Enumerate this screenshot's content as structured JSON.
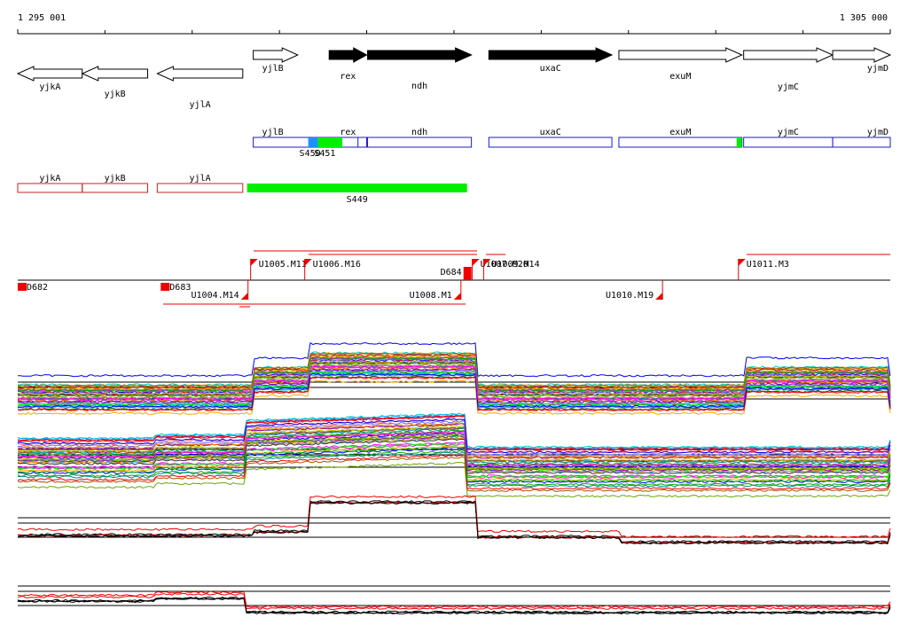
{
  "ruler": {
    "start_label": "1 295 001",
    "end_label": "1 305 000",
    "start_bp": 1295001,
    "end_bp": 1305000,
    "tick_interval_bp": 1000
  },
  "colors": {
    "gene_outline": "#000000",
    "operon_outline": "#1a1acc",
    "reverse_outline": "#cc2222",
    "promoter": "#ee0000",
    "block_green": "#00ee00",
    "block_blue": "#1e90ff",
    "profile_red": "#ee0000",
    "profile_black": "#000000"
  },
  "genes": [
    {
      "name": "yjkA",
      "strand": "-",
      "start": 1295001,
      "end": 1295740,
      "filled": false,
      "row": 1
    },
    {
      "name": "yjkB",
      "strand": "-",
      "start": 1295740,
      "end": 1296490,
      "filled": false,
      "row": 2
    },
    {
      "name": "yjlA",
      "strand": "-",
      "start": 1296600,
      "end": 1297580,
      "filled": false,
      "row": 3
    },
    {
      "name": "yjlB",
      "strand": "+",
      "start": 1297700,
      "end": 1298210,
      "filled": false,
      "row": 0
    },
    {
      "name": "rex",
      "strand": "+",
      "start": 1298570,
      "end": 1299000,
      "filled": true,
      "row": 0
    },
    {
      "name": "ndh",
      "strand": "+",
      "start": 1299010,
      "end": 1300200,
      "filled": true,
      "row": 0
    },
    {
      "name": "uxaC",
      "strand": "+",
      "start": 1300400,
      "end": 1301810,
      "filled": true,
      "row": 0
    },
    {
      "name": "exuM",
      "strand": "+",
      "start": 1301890,
      "end": 1303300,
      "filled": false,
      "row": 0
    },
    {
      "name": "yjmC",
      "strand": "+",
      "start": 1303320,
      "end": 1304340,
      "filled": false,
      "row": 0
    },
    {
      "name": "yjmD",
      "strand": "+",
      "start": 1304340,
      "end": 1305000,
      "filled": false,
      "row": 0
    }
  ],
  "forward_segments": [
    {
      "name": "yjlB",
      "start": 1297700,
      "end": 1298900
    },
    {
      "name": "rex",
      "start": 1298570,
      "end": 1299000
    },
    {
      "name": "ndh",
      "start": 1299010,
      "end": 1300200
    },
    {
      "name": "uxaC",
      "start": 1300400,
      "end": 1301810
    },
    {
      "name": "exuM",
      "start": 1301890,
      "end": 1303300
    },
    {
      "name": "yjmC",
      "start": 1303320,
      "end": 1304340
    },
    {
      "name": "yjmD",
      "start": 1304340,
      "end": 1305000
    }
  ],
  "forward_blocks": [
    {
      "label": "S450",
      "start": 1298330,
      "end": 1298440,
      "color": "#1e90ff"
    },
    {
      "label": "S451",
      "start": 1298440,
      "end": 1298720,
      "color": "#00ee00"
    },
    {
      "label": "",
      "start": 1303240,
      "end": 1303300,
      "color": "#00ee00"
    }
  ],
  "reverse_segments": [
    {
      "name": "yjkA",
      "start": 1295001,
      "end": 1295740
    },
    {
      "name": "yjkB",
      "start": 1295740,
      "end": 1296490
    },
    {
      "name": "yjlA",
      "start": 1296600,
      "end": 1297580
    }
  ],
  "reverse_blocks": [
    {
      "label": "S449",
      "start": 1297630,
      "end": 1300150,
      "color": "#00ee00"
    }
  ],
  "promoters_forward": [
    {
      "label": "U1005.M11",
      "pos": 1297670
    },
    {
      "label": "U1006.M16",
      "pos": 1298290
    },
    {
      "label": "U1007.M20",
      "pos": 1300210
    },
    {
      "label": "U1009.M14",
      "pos": 1300340
    },
    {
      "label": "U1011.M3",
      "pos": 1303260
    }
  ],
  "promoters_reverse": [
    {
      "label": "U1004.M14",
      "pos": 1297640
    },
    {
      "label": "U1008.M1",
      "pos": 1300080
    },
    {
      "label": "U1010.M19",
      "pos": 1302390
    }
  ],
  "terminators": [
    {
      "label": "D682",
      "pos": 1295001
    },
    {
      "label": "D683",
      "pos": 1296640
    },
    {
      "label": "D684",
      "pos": 1300150
    }
  ]
}
